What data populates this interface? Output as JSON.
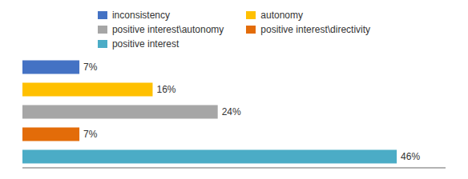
{
  "chart_data": {
    "type": "bar",
    "orientation": "horizontal",
    "categories": [
      "inconsistency",
      "autonomy",
      "positive interest\\autonomy",
      "positive interest\\directivity",
      "positive interest"
    ],
    "values": [
      7,
      16,
      24,
      7,
      46
    ],
    "value_labels": [
      "7%",
      "16%",
      "24%",
      "7%",
      "46%"
    ],
    "colors": [
      "#4472C4",
      "#FFC000",
      "#A6A6A6",
      "#E36C09",
      "#4BACC6"
    ],
    "xlim": [
      0,
      52
    ],
    "data_labels": true,
    "tick_labels": false,
    "legend": "top"
  }
}
